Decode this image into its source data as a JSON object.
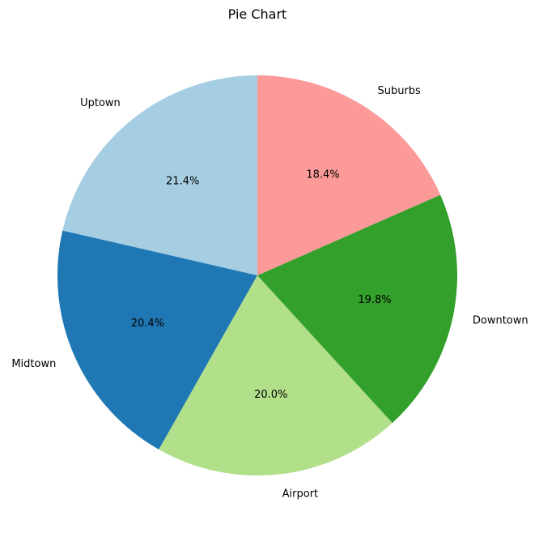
{
  "chart_data": {
    "type": "pie",
    "title": "Pie Chart",
    "start_angle_deg": 90,
    "direction": "counterclockwise",
    "slices": [
      {
        "label": "Uptown",
        "value": 21.4,
        "pct_label": "21.4%",
        "color": "#a6cee3"
      },
      {
        "label": "Midtown",
        "value": 20.4,
        "pct_label": "20.4%",
        "color": "#1f78b4"
      },
      {
        "label": "Airport",
        "value": 20.0,
        "pct_label": "20.0%",
        "color": "#b2df8a"
      },
      {
        "label": "Downtown",
        "value": 19.8,
        "pct_label": "19.8%",
        "color": "#33a02c"
      },
      {
        "label": "Suburbs",
        "value": 18.4,
        "pct_label": "18.4%",
        "color": "#fb9a99"
      }
    ]
  }
}
